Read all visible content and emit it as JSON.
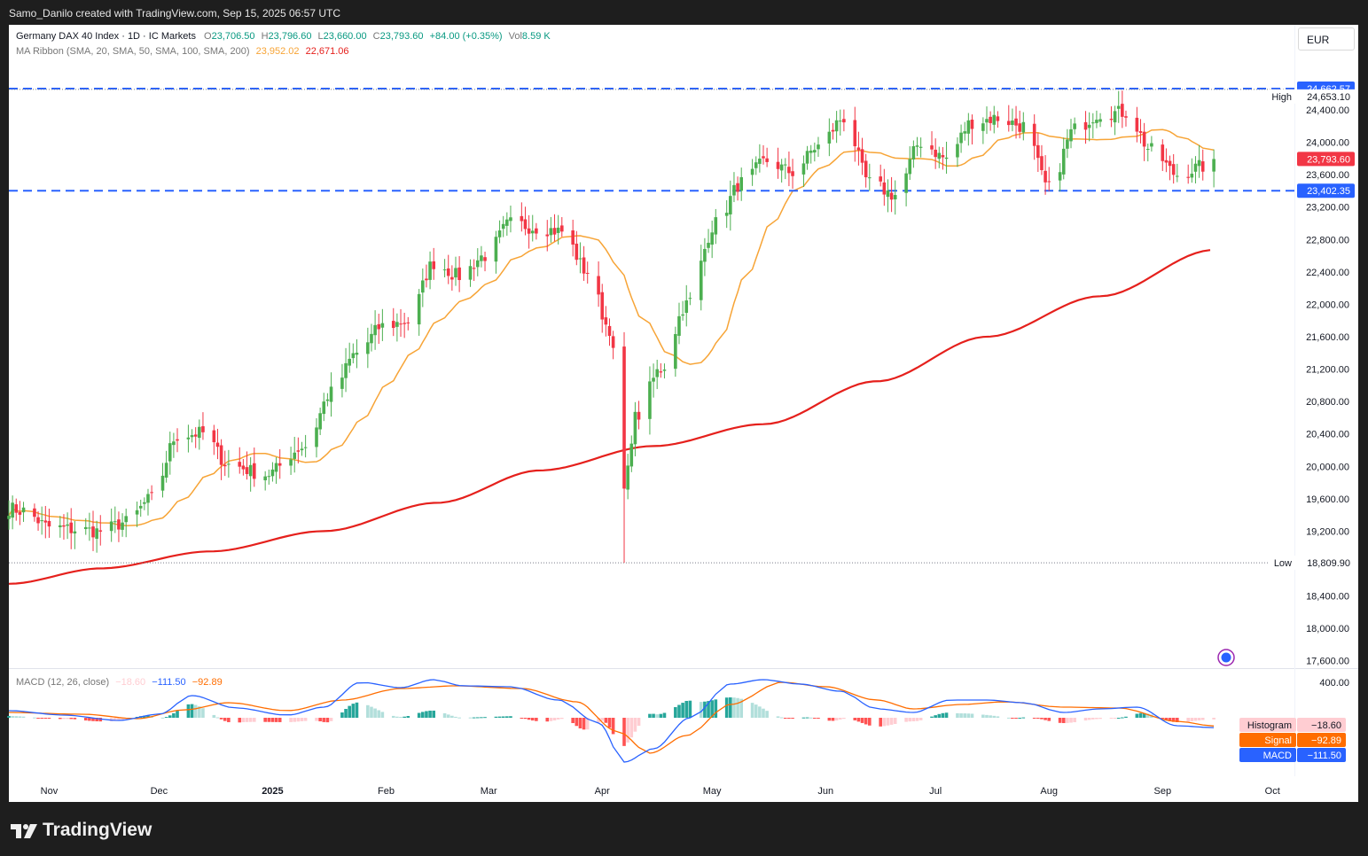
{
  "header": {
    "caption": "Samo_Danilo created with TradingView.com, Sep 15, 2025 06:57 UTC"
  },
  "legend": {
    "symbol": "Germany DAX 40 Index · 1D · IC Markets",
    "open_label": "O",
    "open": "23,706.50",
    "high_label": "H",
    "high": "23,796.60",
    "low_label": "L",
    "low": "23,660.00",
    "close_label": "C",
    "close": "23,793.60",
    "change": "+84.00 (+0.35%)",
    "vol_label": "Vol",
    "vol": "8.59 K",
    "ma_title": "MA Ribbon (SMA, 20, SMA, 50, SMA, 100, SMA, 200)",
    "ma_val_1": "23,952.02",
    "ma_val_2": "22,671.06",
    "macd_title": "MACD (12, 26, close)",
    "macd_hist_val": "−18.60",
    "macd_macd_val": "−111.50",
    "macd_signal_val": "−92.89"
  },
  "currency": "EUR",
  "footer": {
    "brand": "TradingView",
    "logo": "tradingview-logo-icon"
  },
  "colors": {
    "up": "#4caf50",
    "down": "#f23645",
    "ma20": "#f7a436",
    "ma200": "#e5201c",
    "level": "#2962ff",
    "macd": "#2962ff",
    "signal": "#ff6d00",
    "hist_pos_strong": "#26a69a",
    "hist_pos_weak": "#b2dfdb",
    "hist_neg_strong": "#ff5252",
    "hist_neg_weak": "#ffcdd2"
  },
  "chart_data": [
    {
      "type": "candlestick",
      "title": "Germany DAX 40 Index · 1D · IC Markets",
      "y_ticks": [
        17600,
        18000,
        18400,
        18800,
        19200,
        19600,
        20000,
        20400,
        20800,
        21200,
        21600,
        22000,
        22400,
        22800,
        23200,
        23600,
        24000,
        24400
      ],
      "y_tick_labels": [
        "17,600.00",
        "18,000.00",
        "18,400.00",
        "18,800.00",
        "19,200.00",
        "19,600.00",
        "20,000.00",
        "20,400.00",
        "20,800.00",
        "21,200.00",
        "21,600.00",
        "22,000.00",
        "22,400.00",
        "22,800.00",
        "23,200.00",
        "23,600.00",
        "24,000.00",
        "24,400.00"
      ],
      "ylim": [
        17520,
        25450
      ],
      "x_date_range": [
        "2024-10-21",
        "2025-10-07"
      ],
      "x_ticks": [
        {
          "date": "2024-11-01",
          "label": "Nov"
        },
        {
          "date": "2024-12-01",
          "label": "Dec"
        },
        {
          "date": "2025-01-01",
          "label": "2025"
        },
        {
          "date": "2025-02-01",
          "label": "Feb"
        },
        {
          "date": "2025-03-01",
          "label": "Mar"
        },
        {
          "date": "2025-04-01",
          "label": "Apr"
        },
        {
          "date": "2025-05-01",
          "label": "May"
        },
        {
          "date": "2025-06-01",
          "label": "Jun"
        },
        {
          "date": "2025-07-01",
          "label": "Jul"
        },
        {
          "date": "2025-08-01",
          "label": "Aug"
        },
        {
          "date": "2025-09-01",
          "label": "Sep"
        },
        {
          "date": "2025-10-01",
          "label": "Oct"
        }
      ],
      "close_anchors": [
        [
          "2024-10-21",
          19480
        ],
        [
          "2024-10-25",
          19450
        ],
        [
          "2024-11-01",
          19250
        ],
        [
          "2024-11-08",
          19220
        ],
        [
          "2024-11-15",
          19200
        ],
        [
          "2024-11-22",
          19310
        ],
        [
          "2024-11-29",
          19600
        ],
        [
          "2024-12-06",
          20380
        ],
        [
          "2024-12-13",
          20410
        ],
        [
          "2024-12-20",
          20020
        ],
        [
          "2024-12-30",
          19900
        ],
        [
          "2025-01-10",
          20250
        ],
        [
          "2025-01-17",
          20910
        ],
        [
          "2025-01-24",
          21400
        ],
        [
          "2025-01-31",
          21730
        ],
        [
          "2025-02-07",
          21790
        ],
        [
          "2025-02-14",
          22510
        ],
        [
          "2025-02-21",
          22350
        ],
        [
          "2025-02-28",
          22600
        ],
        [
          "2025-03-07",
          23000
        ],
        [
          "2025-03-14",
          22950
        ],
        [
          "2025-03-21",
          22900
        ],
        [
          "2025-03-28",
          22400
        ],
        [
          "2025-04-03",
          21700
        ],
        [
          "2025-04-07",
          19700
        ],
        [
          "2025-04-10",
          20600
        ],
        [
          "2025-04-17",
          21200
        ],
        [
          "2025-04-24",
          22000
        ],
        [
          "2025-05-02",
          23000
        ],
        [
          "2025-05-09",
          23500
        ],
        [
          "2025-05-16",
          23770
        ],
        [
          "2025-05-23",
          23630
        ],
        [
          "2025-05-30",
          23950
        ],
        [
          "2025-06-06",
          24300
        ],
        [
          "2025-06-13",
          23500
        ],
        [
          "2025-06-20",
          23350
        ],
        [
          "2025-06-27",
          24000
        ],
        [
          "2025-07-04",
          23800
        ],
        [
          "2025-07-11",
          24250
        ],
        [
          "2025-07-18",
          24300
        ],
        [
          "2025-07-25",
          24200
        ],
        [
          "2025-08-01",
          23430
        ],
        [
          "2025-08-08",
          24160
        ],
        [
          "2025-08-15",
          24360
        ],
        [
          "2025-08-22",
          24370
        ],
        [
          "2025-08-29",
          23900
        ],
        [
          "2025-09-05",
          23600
        ],
        [
          "2025-09-12",
          23700
        ],
        [
          "2025-09-15",
          23793.6
        ]
      ],
      "last_close": 23793.6,
      "ma_ribbon": {
        "sma20_last": 23952.02,
        "sma200_last": 22671.06,
        "sma200_anchors": [
          [
            "2024-10-21",
            18550
          ],
          [
            "2024-11-15",
            18740
          ],
          [
            "2024-12-15",
            18950
          ],
          [
            "2025-01-15",
            19200
          ],
          [
            "2025-02-15",
            19550
          ],
          [
            "2025-03-15",
            19950
          ],
          [
            "2025-04-15",
            20250
          ],
          [
            "2025-05-15",
            20520
          ],
          [
            "2025-06-15",
            21050
          ],
          [
            "2025-07-15",
            21600
          ],
          [
            "2025-08-15",
            22100
          ],
          [
            "2025-09-15",
            22671.06
          ]
        ]
      },
      "levels": [
        {
          "name": "resistance",
          "value": 24662.57,
          "label": "24,662.57",
          "style": "dashed"
        },
        {
          "name": "support",
          "value": 23402.35,
          "label": "23,402.35",
          "style": "dashed"
        },
        {
          "name": "high",
          "value": 24653.1,
          "label": "24,653.10",
          "tag": "High",
          "style": "dotted"
        },
        {
          "name": "low",
          "value": 18809.9,
          "label": "18,809.90",
          "tag": "Low",
          "style": "dotted"
        }
      ],
      "last_price_label": "23,793.60"
    },
    {
      "type": "macd",
      "title": "MACD (12, 26, close)",
      "y_ticks": [
        400
      ],
      "y_tick_labels": [
        "400.00"
      ],
      "ylim": [
        -650,
        550
      ],
      "macd_anchors": [
        [
          "2024-10-21",
          80
        ],
        [
          "2024-11-05",
          30
        ],
        [
          "2024-11-20",
          -30
        ],
        [
          "2024-12-01",
          40
        ],
        [
          "2024-12-10",
          250
        ],
        [
          "2024-12-22",
          110
        ],
        [
          "2025-01-05",
          30
        ],
        [
          "2025-01-15",
          120
        ],
        [
          "2025-01-25",
          400
        ],
        [
          "2025-02-05",
          340
        ],
        [
          "2025-02-14",
          430
        ],
        [
          "2025-02-22",
          360
        ],
        [
          "2025-03-07",
          350
        ],
        [
          "2025-03-20",
          200
        ],
        [
          "2025-03-31",
          -60
        ],
        [
          "2025-04-07",
          -500
        ],
        [
          "2025-04-15",
          -350
        ],
        [
          "2025-04-25",
          0
        ],
        [
          "2025-05-06",
          380
        ],
        [
          "2025-05-15",
          430
        ],
        [
          "2025-05-25",
          380
        ],
        [
          "2025-06-05",
          300
        ],
        [
          "2025-06-15",
          100
        ],
        [
          "2025-06-25",
          60
        ],
        [
          "2025-07-05",
          200
        ],
        [
          "2025-07-15",
          200
        ],
        [
          "2025-07-25",
          170
        ],
        [
          "2025-08-05",
          60
        ],
        [
          "2025-08-15",
          100
        ],
        [
          "2025-08-25",
          120
        ],
        [
          "2025-09-05",
          -90
        ],
        [
          "2025-09-15",
          -111.5
        ]
      ],
      "signal_anchors": [
        [
          "2024-10-21",
          60
        ],
        [
          "2024-11-10",
          40
        ],
        [
          "2024-11-25",
          -10
        ],
        [
          "2024-12-08",
          90
        ],
        [
          "2024-12-20",
          170
        ],
        [
          "2025-01-05",
          80
        ],
        [
          "2025-01-20",
          200
        ],
        [
          "2025-02-05",
          330
        ],
        [
          "2025-02-20",
          360
        ],
        [
          "2025-03-10",
          330
        ],
        [
          "2025-03-25",
          180
        ],
        [
          "2025-04-05",
          -150
        ],
        [
          "2025-04-14",
          -400
        ],
        [
          "2025-04-24",
          -200
        ],
        [
          "2025-05-06",
          150
        ],
        [
          "2025-05-20",
          400
        ],
        [
          "2025-06-01",
          350
        ],
        [
          "2025-06-15",
          200
        ],
        [
          "2025-06-25",
          100
        ],
        [
          "2025-07-08",
          150
        ],
        [
          "2025-07-20",
          180
        ],
        [
          "2025-08-05",
          120
        ],
        [
          "2025-08-20",
          110
        ],
        [
          "2025-09-05",
          -40
        ],
        [
          "2025-09-15",
          -92.89
        ]
      ],
      "last_histogram": -18.6,
      "labels": [
        {
          "name": "Histogram",
          "value": "−18.60"
        },
        {
          "name": "Signal",
          "value": "−92.89"
        },
        {
          "name": "MACD",
          "value": "−111.50"
        }
      ]
    }
  ]
}
